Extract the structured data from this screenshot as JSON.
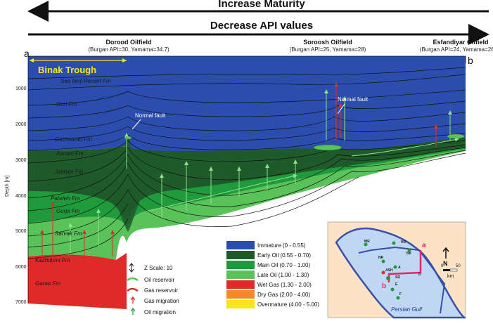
{
  "header": {
    "increase_maturity": "Increase Maturity",
    "decrease_api": "Decrease API values"
  },
  "section": {
    "left_label": "a",
    "right_label": "b",
    "trough_label": "Binak Trough",
    "depth_axis_label": "Depth [m]",
    "depth_ticks": [
      "1000",
      "2000",
      "3000",
      "4000",
      "5000",
      "6000",
      "7000"
    ]
  },
  "oilfields": [
    {
      "name": "Dorood Oilfield",
      "api": "(Burgan API=30, Yamama=34.7)"
    },
    {
      "name": "Soroosh Oilfield",
      "api": "(Burgan API=25, Yamama=28)"
    },
    {
      "name": "Esfandiyar Oilfield",
      "api": "(Burgan API=24, Yamama=26)"
    }
  ],
  "formations": [
    "Sea bed-Recent Fm",
    "Guri Fm",
    "Gachsaran Fm",
    "Asmari Fm",
    "Jahrum Fm",
    "Pabdeh Fm",
    "Gurpi Fm",
    "Sarvak Fm",
    "Kazhdumi Fm",
    "Garau Fm"
  ],
  "annotations": {
    "normal_fault_1": "Normal fault",
    "normal_fault_2": "Normal fault"
  },
  "maturity_legend": [
    {
      "label": "Immature (0 - 0.55)",
      "color": "#2b4eae"
    },
    {
      "label": "Early Oil (0.55 - 0.70)",
      "color": "#1e5a2a"
    },
    {
      "label": "Main Oil (0.70 - 1.00)",
      "color": "#1f9b3c"
    },
    {
      "label": "Late Oil (1.00 - 1.30)",
      "color": "#59c258"
    },
    {
      "label": "Wet Gas (1.30 - 2.00)",
      "color": "#e02a2a"
    },
    {
      "label": "Dry Gas (2.00 - 4.00)",
      "color": "#f08a2a"
    },
    {
      "label": "Overmature (4.00 - 5.00)",
      "color": "#f6e61c"
    }
  ],
  "symbol_legend": {
    "z_scale": "Z Scale: 10",
    "oil_reservoir": "Oil reservoir",
    "gas_reservoir": "Gas reservoir",
    "gas_migration": "Gas migration",
    "oil_migration": "Oil migration"
  },
  "inset_map": {
    "sea_label": "Persian Gulf",
    "point_a": "a",
    "point_b": "b",
    "north_label": "N",
    "scale_zero": "0",
    "scale_fifty": "50",
    "scale_unit": "km",
    "field_labels": [
      "MR",
      "HD",
      "BK",
      "NR",
      "A",
      "ASH",
      "SR",
      "D",
      "E",
      "F"
    ]
  }
}
